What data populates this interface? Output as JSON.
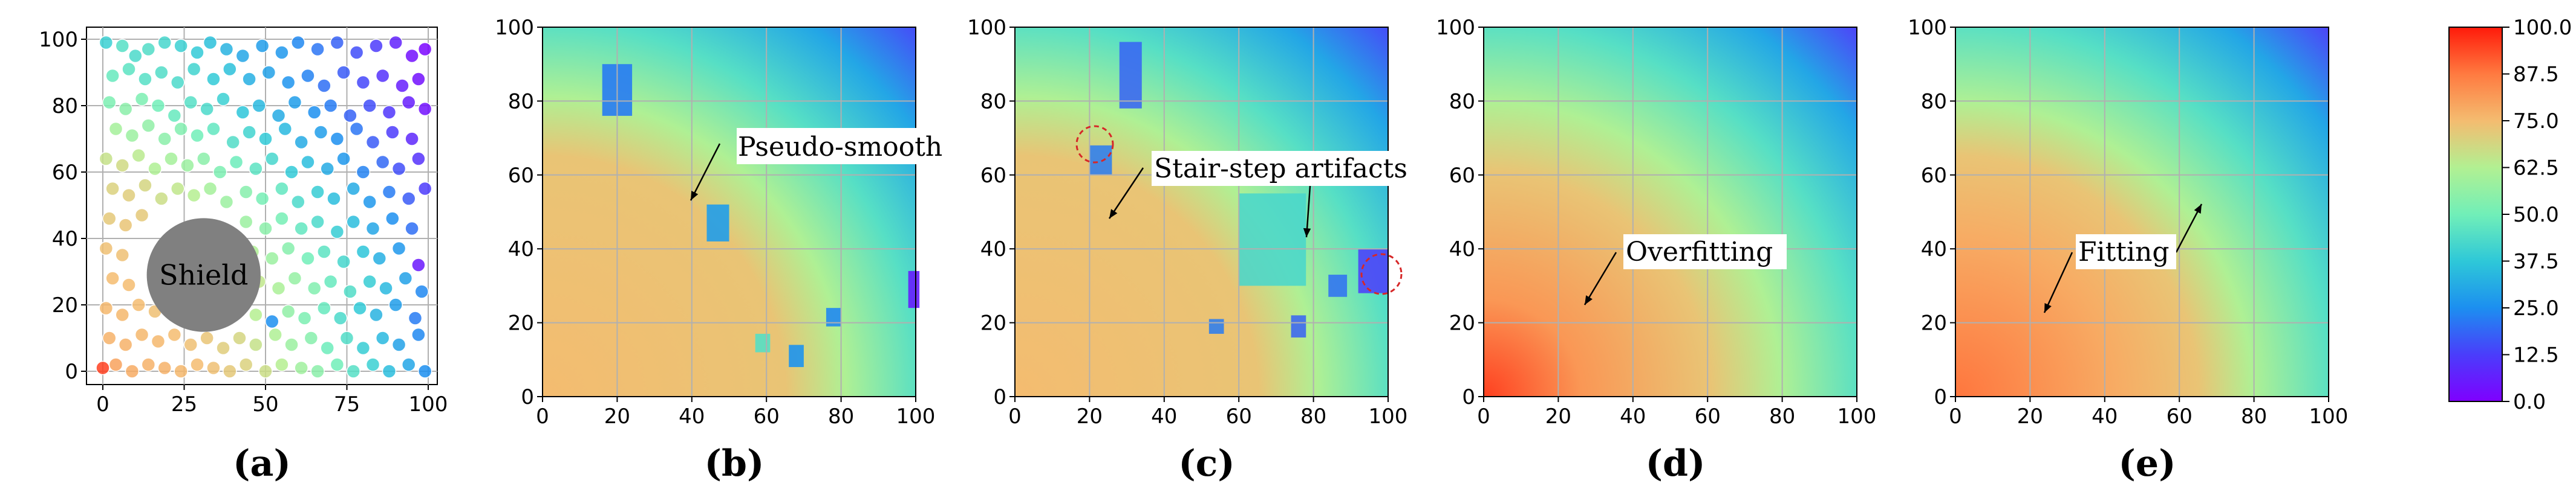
{
  "chart_data": [
    {
      "panel": "(a)",
      "type": "scatter",
      "xlim": [
        0,
        100
      ],
      "ylim": [
        0,
        100
      ],
      "xticks": [
        "0",
        "25",
        "50",
        "75",
        "100"
      ],
      "yticks": [
        "0",
        "20",
        "40",
        "60",
        "80",
        "100"
      ],
      "grid": true,
      "obstacle": {
        "label": "Shield",
        "center": [
          31,
          29
        ],
        "radius": 17.5
      },
      "points": [
        [
          1,
          99,
          40
        ],
        [
          6,
          98,
          45
        ],
        [
          10,
          95,
          43
        ],
        [
          14,
          97,
          44
        ],
        [
          19,
          99,
          42
        ],
        [
          24,
          98,
          40
        ],
        [
          29,
          96,
          38
        ],
        [
          33,
          99,
          36
        ],
        [
          38,
          97,
          33
        ],
        [
          43,
          95,
          30
        ],
        [
          49,
          98,
          28
        ],
        [
          55,
          96,
          27
        ],
        [
          60,
          99,
          24
        ],
        [
          66,
          97,
          21
        ],
        [
          72,
          99,
          18
        ],
        [
          78,
          96,
          15
        ],
        [
          84,
          98,
          12
        ],
        [
          90,
          99,
          7
        ],
        [
          95,
          95,
          3
        ],
        [
          99,
          97,
          1
        ],
        [
          3,
          89,
          48
        ],
        [
          8,
          91,
          46
        ],
        [
          13,
          88,
          45
        ],
        [
          18,
          90,
          44
        ],
        [
          23,
          87,
          43
        ],
        [
          28,
          91,
          41
        ],
        [
          34,
          88,
          38
        ],
        [
          39,
          91,
          36
        ],
        [
          45,
          88,
          32
        ],
        [
          51,
          90,
          29
        ],
        [
          57,
          87,
          26
        ],
        [
          63,
          89,
          23
        ],
        [
          68,
          86,
          20
        ],
        [
          74,
          90,
          17
        ],
        [
          80,
          87,
          14
        ],
        [
          86,
          89,
          10
        ],
        [
          92,
          86,
          6
        ],
        [
          97,
          88,
          3
        ],
        [
          2,
          81,
          52
        ],
        [
          7,
          79,
          55
        ],
        [
          12,
          82,
          52
        ],
        [
          17,
          80,
          50
        ],
        [
          22,
          77,
          48
        ],
        [
          27,
          81,
          45
        ],
        [
          32,
          79,
          43
        ],
        [
          37,
          82,
          40
        ],
        [
          43,
          78,
          37
        ],
        [
          48,
          80,
          34
        ],
        [
          54,
          77,
          31
        ],
        [
          59,
          81,
          28
        ],
        [
          65,
          78,
          25
        ],
        [
          70,
          80,
          22
        ],
        [
          76,
          77,
          18
        ],
        [
          82,
          80,
          15
        ],
        [
          88,
          78,
          11
        ],
        [
          94,
          81,
          6
        ],
        [
          99,
          79,
          3
        ],
        [
          4,
          73,
          60
        ],
        [
          9,
          71,
          58
        ],
        [
          14,
          74,
          56
        ],
        [
          19,
          70,
          55
        ],
        [
          24,
          73,
          53
        ],
        [
          29,
          71,
          50
        ],
        [
          34,
          73,
          47
        ],
        [
          40,
          69,
          44
        ],
        [
          45,
          72,
          41
        ],
        [
          50,
          70,
          38
        ],
        [
          56,
          73,
          34
        ],
        [
          61,
          69,
          31
        ],
        [
          67,
          72,
          28
        ],
        [
          72,
          70,
          25
        ],
        [
          78,
          73,
          21
        ],
        [
          83,
          69,
          17
        ],
        [
          89,
          72,
          12
        ],
        [
          95,
          70,
          8
        ],
        [
          1,
          64,
          66
        ],
        [
          6,
          62,
          68
        ],
        [
          11,
          65,
          64
        ],
        [
          16,
          61,
          62
        ],
        [
          21,
          64,
          60
        ],
        [
          26,
          62,
          58
        ],
        [
          31,
          64,
          55
        ],
        [
          36,
          60,
          52
        ],
        [
          41,
          63,
          49
        ],
        [
          47,
          61,
          46
        ],
        [
          52,
          64,
          42
        ],
        [
          58,
          60,
          38
        ],
        [
          63,
          63,
          35
        ],
        [
          69,
          61,
          31
        ],
        [
          74,
          64,
          27
        ],
        [
          80,
          60,
          23
        ],
        [
          86,
          63,
          19
        ],
        [
          91,
          61,
          15
        ],
        [
          97,
          64,
          10
        ],
        [
          3,
          55,
          70
        ],
        [
          8,
          53,
          71
        ],
        [
          13,
          56,
          69
        ],
        [
          18,
          52,
          67
        ],
        [
          23,
          55,
          65
        ],
        [
          28,
          53,
          63
        ],
        [
          33,
          55,
          60
        ],
        [
          38,
          51,
          58
        ],
        [
          44,
          54,
          54
        ],
        [
          49,
          52,
          51
        ],
        [
          55,
          55,
          47
        ],
        [
          60,
          51,
          43
        ],
        [
          66,
          54,
          39
        ],
        [
          71,
          52,
          35
        ],
        [
          77,
          55,
          31
        ],
        [
          82,
          51,
          27
        ],
        [
          88,
          54,
          22
        ],
        [
          94,
          52,
          17
        ],
        [
          99,
          55,
          12
        ],
        [
          2,
          46,
          72
        ],
        [
          7,
          44,
          73
        ],
        [
          12,
          47,
          72
        ],
        [
          44,
          45,
          58
        ],
        [
          50,
          43,
          55
        ],
        [
          55,
          46,
          51
        ],
        [
          61,
          43,
          47
        ],
        [
          66,
          45,
          43
        ],
        [
          72,
          42,
          39
        ],
        [
          77,
          45,
          35
        ],
        [
          83,
          43,
          30
        ],
        [
          89,
          46,
          25
        ],
        [
          95,
          43,
          20
        ],
        [
          1,
          37,
          74
        ],
        [
          6,
          35,
          74
        ],
        [
          46,
          36,
          62
        ],
        [
          52,
          34,
          58
        ],
        [
          57,
          37,
          54
        ],
        [
          63,
          34,
          50
        ],
        [
          68,
          36,
          46
        ],
        [
          74,
          33,
          42
        ],
        [
          80,
          36,
          37
        ],
        [
          85,
          34,
          32
        ],
        [
          91,
          37,
          27
        ],
        [
          97,
          32,
          5
        ],
        [
          3,
          28,
          75
        ],
        [
          8,
          26,
          75
        ],
        [
          48,
          27,
          65
        ],
        [
          54,
          25,
          61
        ],
        [
          59,
          28,
          57
        ],
        [
          65,
          25,
          53
        ],
        [
          70,
          27,
          48
        ],
        [
          76,
          24,
          44
        ],
        [
          82,
          27,
          39
        ],
        [
          87,
          25,
          34
        ],
        [
          93,
          28,
          29
        ],
        [
          98,
          24,
          24
        ],
        [
          1,
          19,
          76
        ],
        [
          6,
          17,
          76
        ],
        [
          11,
          20,
          75
        ],
        [
          16,
          18,
          74
        ],
        [
          21,
          20,
          73
        ],
        [
          26,
          17,
          72
        ],
        [
          31,
          19,
          70
        ],
        [
          36,
          16,
          68
        ],
        [
          41,
          19,
          66
        ],
        [
          47,
          17,
          63
        ],
        [
          52,
          15,
          25
        ],
        [
          57,
          18,
          56
        ],
        [
          62,
          16,
          52
        ],
        [
          68,
          19,
          48
        ],
        [
          73,
          16,
          43
        ],
        [
          79,
          19,
          38
        ],
        [
          84,
          17,
          33
        ],
        [
          90,
          20,
          28
        ],
        [
          96,
          16,
          22
        ],
        [
          2,
          10,
          77
        ],
        [
          7,
          8,
          77
        ],
        [
          12,
          11,
          76
        ],
        [
          17,
          9,
          76
        ],
        [
          22,
          11,
          75
        ],
        [
          27,
          8,
          74
        ],
        [
          32,
          10,
          73
        ],
        [
          37,
          7,
          71
        ],
        [
          42,
          10,
          69
        ],
        [
          47,
          8,
          66
        ],
        [
          53,
          11,
          62
        ],
        [
          58,
          8,
          58
        ],
        [
          64,
          10,
          54
        ],
        [
          69,
          7,
          49
        ],
        [
          75,
          10,
          44
        ],
        [
          80,
          7,
          39
        ],
        [
          86,
          10,
          34
        ],
        [
          91,
          8,
          29
        ],
        [
          97,
          11,
          24
        ],
        [
          0,
          1,
          95
        ],
        [
          4,
          2,
          80
        ],
        [
          9,
          0,
          78
        ],
        [
          14,
          2,
          77
        ],
        [
          19,
          1,
          77
        ],
        [
          24,
          0,
          76
        ],
        [
          29,
          2,
          75
        ],
        [
          34,
          1,
          74
        ],
        [
          39,
          0,
          72
        ],
        [
          44,
          2,
          70
        ],
        [
          50,
          0,
          67
        ],
        [
          55,
          2,
          63
        ],
        [
          61,
          1,
          59
        ],
        [
          66,
          0,
          55
        ],
        [
          72,
          2,
          50
        ],
        [
          77,
          0,
          45
        ],
        [
          83,
          2,
          40
        ],
        [
          88,
          0,
          35
        ],
        [
          94,
          2,
          30
        ],
        [
          99,
          0,
          25
        ]
      ]
    },
    {
      "panel": "(b)",
      "type": "heatmap",
      "xlim": [
        0,
        100
      ],
      "ylim": [
        0,
        100
      ],
      "xticks": [
        "0",
        "20",
        "40",
        "60",
        "80",
        "100"
      ],
      "yticks": [
        "0",
        "20",
        "40",
        "60",
        "80",
        "100"
      ],
      "annotation": "Pseudo-smooth"
    },
    {
      "panel": "(c)",
      "type": "heatmap",
      "xlim": [
        0,
        100
      ],
      "ylim": [
        0,
        100
      ],
      "xticks": [
        "0",
        "20",
        "40",
        "60",
        "80",
        "100"
      ],
      "yticks": [
        "0",
        "20",
        "40",
        "60",
        "80",
        "100"
      ],
      "annotation": "Stair-step artifacts"
    },
    {
      "panel": "(d)",
      "type": "heatmap",
      "xlim": [
        0,
        100
      ],
      "ylim": [
        0,
        100
      ],
      "xticks": [
        "0",
        "20",
        "40",
        "60",
        "80",
        "100"
      ],
      "yticks": [
        "0",
        "20",
        "40",
        "60",
        "80",
        "100"
      ],
      "annotation": "Overfitting"
    },
    {
      "panel": "(e)",
      "type": "heatmap",
      "xlim": [
        0,
        100
      ],
      "ylim": [
        0,
        100
      ],
      "xticks": [
        "0",
        "20",
        "40",
        "60",
        "80",
        "100"
      ],
      "yticks": [
        "0",
        "20",
        "40",
        "60",
        "80",
        "100"
      ],
      "annotation": "Fitting"
    }
  ],
  "colorbar": {
    "range": [
      0.0,
      100.0
    ],
    "ticks": [
      "0.0",
      "12.5",
      "25.0",
      "37.5",
      "50.0",
      "62.5",
      "75.0",
      "87.5",
      "100.0"
    ],
    "colormap": "rainbow"
  }
}
